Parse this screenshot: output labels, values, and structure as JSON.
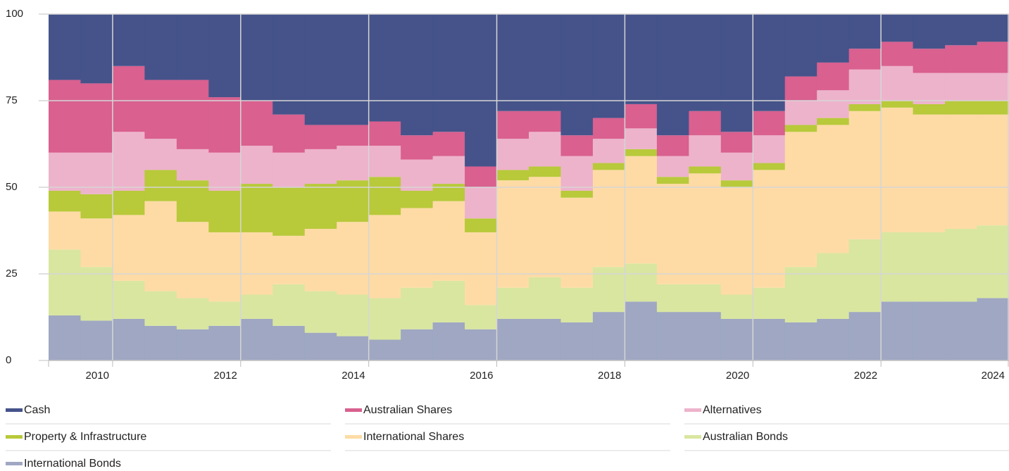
{
  "chart_data": {
    "type": "stacked-step-area",
    "x": [
      2009.0,
      2009.5,
      2010.0,
      2010.5,
      2011.0,
      2011.5,
      2012.0,
      2012.5,
      2013.0,
      2013.5,
      2014.0,
      2014.5,
      2015.0,
      2015.5,
      2016.0,
      2016.5,
      2017.0,
      2017.5,
      2018.0,
      2018.5,
      2019.0,
      2019.5,
      2020.0,
      2020.5,
      2021.0,
      2021.5,
      2022.0,
      2022.5,
      2023.0,
      2023.5
    ],
    "series": [
      {
        "name": "International Bonds",
        "color": "#9fa7c2",
        "values": [
          13,
          11.5,
          12,
          10,
          9,
          10,
          12,
          10,
          8,
          7,
          6,
          9,
          11,
          9,
          12,
          12,
          11,
          14,
          17,
          14,
          14,
          12,
          12,
          11,
          12,
          14,
          17,
          17,
          17,
          18
        ]
      },
      {
        "name": "Australian Bonds",
        "color": "#d9e6a0",
        "values": [
          19,
          15.5,
          11,
          10,
          9,
          7,
          7,
          12,
          12,
          12,
          12,
          12,
          12,
          7,
          9,
          12,
          10,
          13,
          11,
          8,
          8,
          7,
          9,
          16,
          19,
          21,
          20,
          20,
          21,
          21
        ]
      },
      {
        "name": "International Shares",
        "color": "#fedba5",
        "values": [
          11,
          14,
          19,
          26,
          22,
          20,
          18,
          14,
          18,
          21,
          24,
          23,
          23,
          21,
          31,
          29,
          26,
          28,
          31,
          29,
          32,
          31,
          34,
          39,
          37,
          37,
          36,
          34,
          33,
          32
        ]
      },
      {
        "name": "Property & Infrastructure",
        "color": "#b8c93a",
        "values": [
          6,
          7,
          7,
          9,
          12,
          12,
          14,
          14,
          13,
          12,
          11,
          5,
          5,
          4,
          3,
          3,
          2,
          2,
          2,
          2,
          2,
          2,
          2,
          2,
          2,
          2,
          2,
          3,
          4,
          4
        ]
      },
      {
        "name": "Alternatives",
        "color": "#edb3cb",
        "values": [
          11,
          12,
          17,
          9,
          9,
          11,
          11,
          10,
          10,
          10,
          9,
          9,
          8,
          9,
          9,
          10,
          10,
          7,
          6,
          6,
          9,
          8,
          8,
          7,
          8,
          10,
          10,
          9,
          8,
          8
        ]
      },
      {
        "name": "Australian Shares",
        "color": "#d9608f",
        "values": [
          21,
          20,
          19,
          17,
          20,
          16,
          13,
          11,
          7,
          6,
          7,
          7,
          7,
          6,
          8,
          6,
          6,
          6,
          7,
          6,
          7,
          6,
          7,
          7,
          8,
          6,
          7,
          7,
          8,
          9
        ]
      },
      {
        "name": "Cash",
        "color": "#45538a",
        "values": [
          19,
          20,
          15,
          19,
          19,
          24,
          25,
          29,
          32,
          32,
          31,
          35,
          34,
          44,
          28,
          28,
          35,
          30,
          26,
          35,
          28,
          34,
          28,
          18,
          14,
          10,
          8,
          10,
          9,
          8
        ]
      }
    ],
    "legend_order": [
      6,
      5,
      4,
      3,
      2,
      1,
      0
    ],
    "xlim": [
      2009.0,
      2024.0
    ],
    "xticks": [
      2010,
      2012,
      2014,
      2016,
      2018,
      2020,
      2022,
      2024
    ],
    "ylim": [
      0,
      100
    ],
    "yticks": [
      0,
      25,
      50,
      75,
      100
    ],
    "grid": true
  }
}
